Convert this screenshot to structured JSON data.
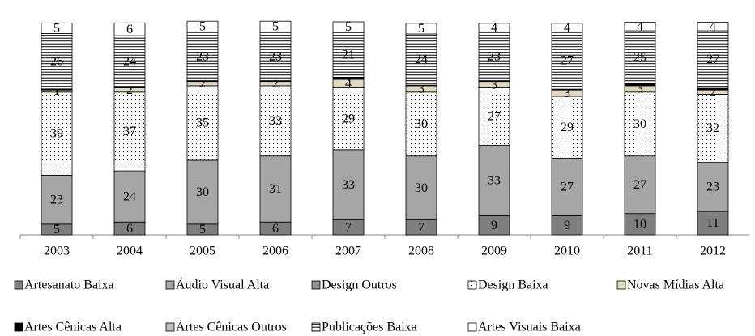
{
  "chart_data": {
    "type": "stacked_bar",
    "categories": [
      "2003",
      "2004",
      "2005",
      "2006",
      "2007",
      "2008",
      "2009",
      "2010",
      "2011",
      "2012"
    ],
    "ylim": [
      0,
      100
    ],
    "series": [
      {
        "name": "Artesanato Baixa",
        "color": "#7f7f7f",
        "labeled": true,
        "values": [
          5,
          6,
          5,
          6,
          7,
          7,
          9,
          9,
          10,
          11
        ]
      },
      {
        "name": "Áudio Visual Alta",
        "color": "#a6a6a6",
        "labeled": true,
        "values": [
          23,
          24,
          30,
          31,
          33,
          30,
          33,
          27,
          27,
          23
        ]
      },
      {
        "name": "Design Outros",
        "color": "#8c8c8c",
        "labeled": false,
        "values": [
          null,
          null,
          null,
          null,
          null,
          null,
          null,
          null,
          null,
          null
        ]
      },
      {
        "name": "Design Baixa",
        "color": "#ffffff",
        "pattern": "dots",
        "labeled": true,
        "values": [
          39,
          37,
          35,
          33,
          29,
          30,
          27,
          29,
          30,
          32
        ]
      },
      {
        "name": "Novas Mídias Alta",
        "color": "#ddd9c3",
        "labeled": true,
        "values": [
          1,
          2,
          2,
          2,
          4,
          3,
          3,
          3,
          3,
          2
        ]
      },
      {
        "name": "Artes Cênicas Alta",
        "color": "#000000",
        "labeled": false,
        "values": [
          0.5,
          0.5,
          0.3,
          0.3,
          1,
          0.3,
          0.3,
          0.3,
          0.8,
          0.8
        ]
      },
      {
        "name": "Artes Cênicas Outros",
        "color": "#bfbfbf",
        "labeled": false,
        "values": [
          null,
          null,
          null,
          null,
          null,
          null,
          null,
          null,
          null,
          null
        ]
      },
      {
        "name": "Publicações Baixa",
        "color": "#ffffff",
        "pattern": "hlines",
        "labeled": true,
        "values": [
          26,
          24,
          23,
          23,
          21,
          24,
          23,
          27,
          25,
          27
        ]
      },
      {
        "name": "Artes Visuais Baixa",
        "color": "#ffffff",
        "labeled": true,
        "values": [
          5,
          6,
          5,
          5,
          5,
          5,
          4,
          4,
          4,
          4
        ]
      }
    ]
  }
}
